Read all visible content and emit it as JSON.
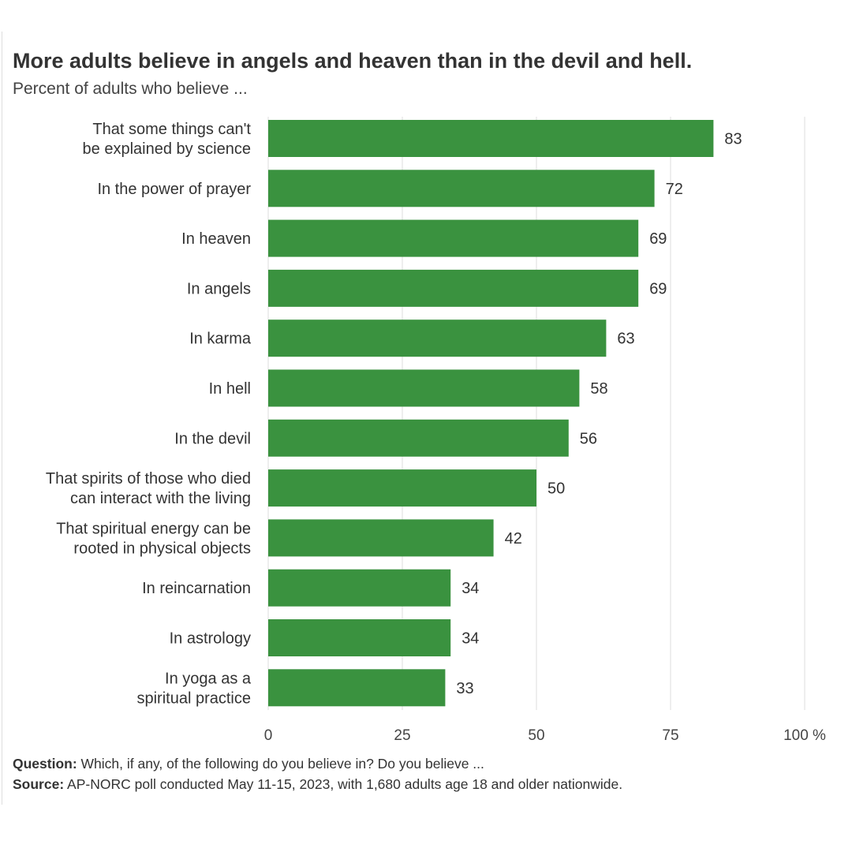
{
  "header": {
    "title": "More adults believe in angels and heaven than in the devil and hell.",
    "subtitle": "Percent of adults who believe ..."
  },
  "chart_data": {
    "type": "bar",
    "orientation": "horizontal",
    "title": "More adults believe in angels and heaven than in the devil and hell.",
    "subtitle": "Percent of adults who believe ...",
    "categories": [
      [
        "That some things can't",
        "be explained by science"
      ],
      [
        "In the power of prayer"
      ],
      [
        "In heaven"
      ],
      [
        "In angels"
      ],
      [
        "In karma"
      ],
      [
        "In hell"
      ],
      [
        "In the devil"
      ],
      [
        "That spirits of those who died",
        "can interact with the living"
      ],
      [
        "That spiritual energy can be",
        "rooted in physical objects"
      ],
      [
        "In reincarnation"
      ],
      [
        "In astrology"
      ],
      [
        "In yoga as a",
        "spiritual practice"
      ]
    ],
    "values": [
      83,
      72,
      69,
      69,
      63,
      58,
      56,
      50,
      42,
      34,
      34,
      33
    ],
    "xlim": [
      0,
      100
    ],
    "ticks": [
      0,
      25,
      50,
      75,
      100
    ],
    "tick_labels": [
      "0",
      "25",
      "50",
      "75",
      "100 %"
    ],
    "grid": true,
    "legend": "none",
    "bar_color": "#3a923f",
    "grid_color": "#dcdcdc"
  },
  "footer": {
    "question_label": "Question:",
    "question_text": " Which, if any, of the following do you believe in? Do you believe ...",
    "source_label": "Source:",
    "source_text": " AP-NORC poll conducted May 11-15, 2023, with 1,680 adults age 18 and older nationwide."
  }
}
